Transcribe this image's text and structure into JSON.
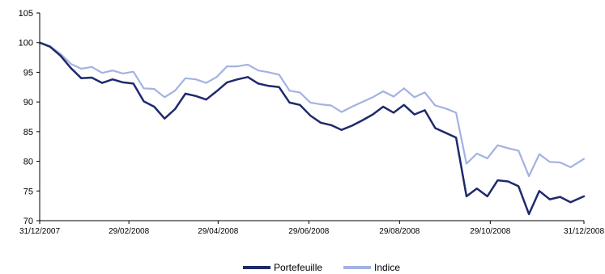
{
  "chart_data": {
    "type": "line",
    "x_tick_labels": [
      "31/12/2007",
      "29/02/2008",
      "29/04/2008",
      "29/06/2008",
      "29/08/2008",
      "29/10/2008",
      "31/12/2008"
    ],
    "y_tick_labels": [
      "70",
      "75",
      "80",
      "85",
      "90",
      "95",
      "100",
      "105"
    ],
    "ylim": [
      70,
      105
    ],
    "grid": false,
    "legend_position": "bottom",
    "x_dates": [
      "2007-12-31",
      "2008-01-07",
      "2008-01-14",
      "2008-01-21",
      "2008-01-28",
      "2008-02-04",
      "2008-02-11",
      "2008-02-18",
      "2008-02-25",
      "2008-03-03",
      "2008-03-10",
      "2008-03-17",
      "2008-03-24",
      "2008-03-31",
      "2008-04-07",
      "2008-04-14",
      "2008-04-21",
      "2008-04-28",
      "2008-05-05",
      "2008-05-12",
      "2008-05-19",
      "2008-05-26",
      "2008-06-02",
      "2008-06-09",
      "2008-06-16",
      "2008-06-23",
      "2008-06-30",
      "2008-07-07",
      "2008-07-14",
      "2008-07-21",
      "2008-07-28",
      "2008-08-04",
      "2008-08-11",
      "2008-08-18",
      "2008-08-25",
      "2008-09-01",
      "2008-09-08",
      "2008-09-15",
      "2008-09-22",
      "2008-09-29",
      "2008-10-06",
      "2008-10-13",
      "2008-10-20",
      "2008-10-27",
      "2008-11-03",
      "2008-11-10",
      "2008-11-17",
      "2008-11-24",
      "2008-12-01",
      "2008-12-08",
      "2008-12-15",
      "2008-12-22",
      "2008-12-31"
    ],
    "series": [
      {
        "name": "Portefeuille",
        "color": "#1f2a6b",
        "values": [
          100,
          99.3,
          97.8,
          95.7,
          94,
          94.1,
          93.2,
          93.8,
          93.3,
          93.1,
          90.1,
          89.2,
          87.2,
          88.8,
          91.4,
          91,
          90.4,
          91.8,
          93.3,
          93.8,
          94.2,
          93.1,
          92.7,
          92.5,
          89.9,
          89.5,
          87.7,
          86.5,
          86.1,
          85.3,
          86,
          86.9,
          87.9,
          89.2,
          88.2,
          89.5,
          87.9,
          88.6,
          85.6,
          84.8,
          84,
          74.1,
          75.4,
          74.1,
          76.8,
          76.6,
          75.8,
          71.1,
          75,
          73.6,
          74,
          73.1,
          74.1
        ]
      },
      {
        "name": "Indice",
        "color": "#a3b2e3",
        "values": [
          100,
          99.4,
          98.1,
          96.4,
          95.6,
          95.9,
          94.9,
          95.3,
          94.8,
          95.1,
          92.3,
          92.2,
          90.8,
          91.9,
          94,
          93.8,
          93.2,
          94.2,
          96,
          96,
          96.3,
          95.3,
          95,
          94.6,
          91.9,
          91.6,
          89.9,
          89.6,
          89.4,
          88.3,
          89.2,
          90,
          90.8,
          91.8,
          90.9,
          92.3,
          90.8,
          91.6,
          89.4,
          88.9,
          88.2,
          79.6,
          81.3,
          80.5,
          82.7,
          82.2,
          81.8,
          77.5,
          81.2,
          79.9,
          79.8,
          79,
          80.4
        ]
      }
    ]
  }
}
